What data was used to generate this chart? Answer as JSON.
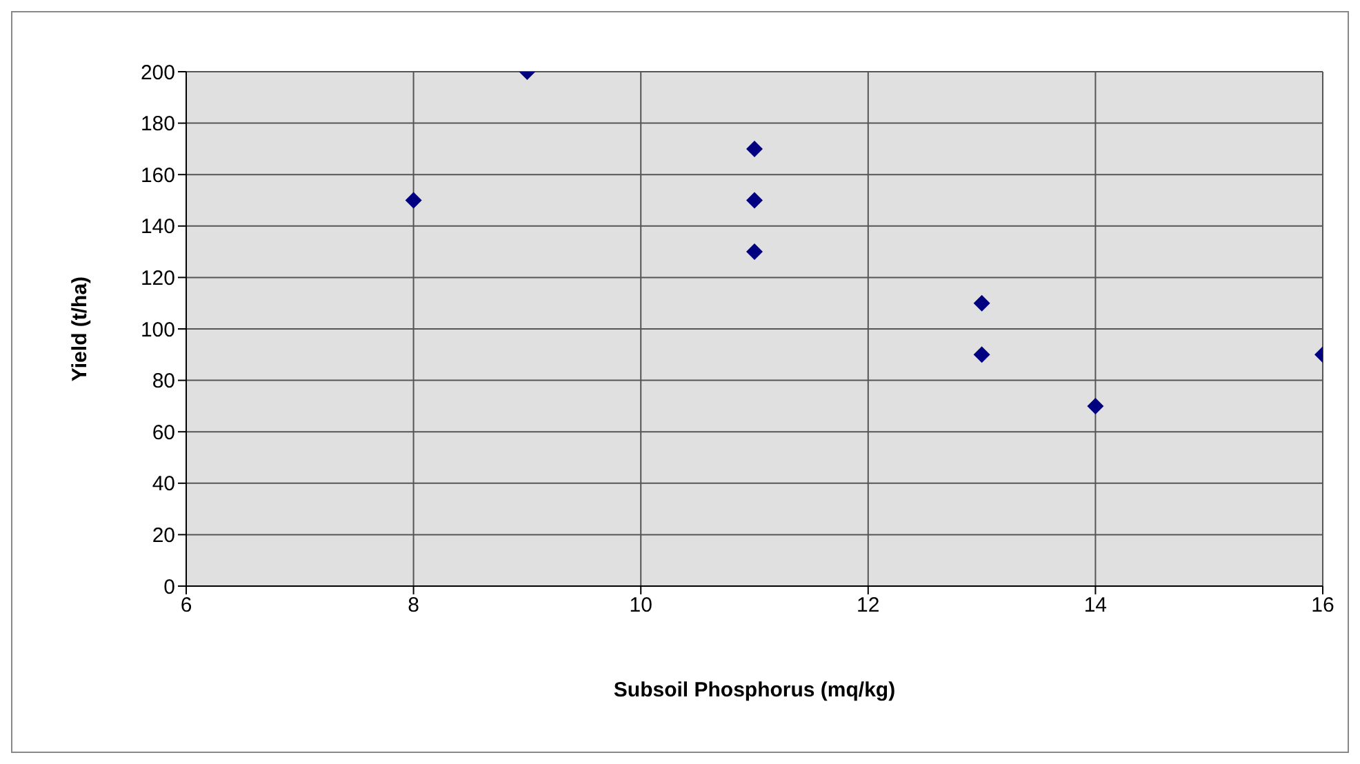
{
  "chart_data": {
    "type": "scatter",
    "xlabel": "Subsoil Phosphorus (mq/kg)",
    "ylabel": "Yield (t/ha)",
    "x": [
      8,
      9,
      11,
      11,
      11,
      13,
      13,
      14,
      16
    ],
    "series": [
      {
        "color": "#000080",
        "values": [
          150,
          200,
          170,
          150,
          130,
          110,
          90,
          70,
          90
        ]
      }
    ],
    "xlim": [
      6,
      16
    ],
    "xticks": [
      6,
      8,
      10,
      12,
      14,
      16
    ],
    "ylim": [
      0,
      200
    ],
    "yticks": [
      0,
      20,
      40,
      60,
      80,
      100,
      120,
      140,
      160,
      180,
      200
    ],
    "grid": true,
    "marker": "diamond"
  }
}
